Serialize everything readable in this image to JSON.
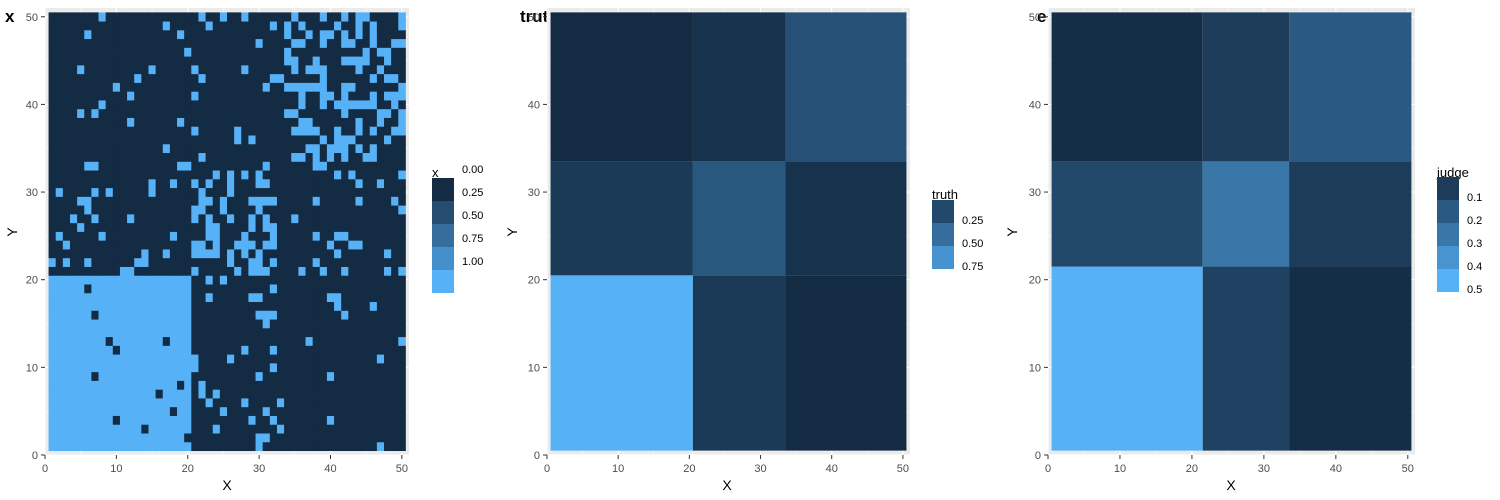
{
  "colors": {
    "panel_background": "#ebebeb",
    "grid_major": "#ffffff",
    "tick_text": "#4d4d4d",
    "scale_low": "#132b43",
    "scale_high": "#56b1f7"
  },
  "chart_data": [
    {
      "type": "heatmap",
      "title": "x",
      "xlabel": "X",
      "ylabel": "Y",
      "xlim": [
        0,
        51
      ],
      "ylim": [
        0,
        51
      ],
      "xticks": [
        "0",
        "10",
        "20",
        "30",
        "40",
        "50"
      ],
      "yticks": [
        "0",
        "10",
        "20",
        "30",
        "40",
        "50"
      ],
      "legend": {
        "title": "x",
        "position": "right",
        "labels": [
          "0.00",
          "0.25",
          "0.50",
          "0.75",
          "1.00"
        ],
        "values": [
          0,
          0.25,
          0.5,
          0.75,
          1
        ]
      },
      "description_of_cells": "50x50 binary matrix (0 = dark, 1 = light); stochastic block model sample with blocks at rows/cols 1-20, 21-33, 34-50",
      "blocks": [
        {
          "x": [
            1,
            20
          ],
          "y": [
            1,
            20
          ],
          "density": 0.98
        },
        {
          "x": [
            21,
            33
          ],
          "y": [
            1,
            20
          ],
          "density": 0.12
        },
        {
          "x": [
            34,
            50
          ],
          "y": [
            1,
            20
          ],
          "density": 0.03
        },
        {
          "x": [
            1,
            20
          ],
          "y": [
            21,
            33
          ],
          "density": 0.12
        },
        {
          "x": [
            21,
            33
          ],
          "y": [
            21,
            33
          ],
          "density": 0.38
        },
        {
          "x": [
            34,
            50
          ],
          "y": [
            21,
            33
          ],
          "density": 0.1
        },
        {
          "x": [
            1,
            20
          ],
          "y": [
            34,
            50
          ],
          "density": 0.03
        },
        {
          "x": [
            21,
            33
          ],
          "y": [
            34,
            50
          ],
          "density": 0.1
        },
        {
          "x": [
            34,
            50
          ],
          "y": [
            34,
            50
          ],
          "density": 0.4
        }
      ]
    },
    {
      "type": "heatmap",
      "title": "truth",
      "xlabel": "X",
      "ylabel": "Y",
      "xlim": [
        0,
        51
      ],
      "ylim": [
        0,
        51
      ],
      "xticks": [
        "0",
        "10",
        "20",
        "30",
        "40",
        "50"
      ],
      "yticks": [
        "0",
        "10",
        "20",
        "30",
        "40",
        "50"
      ],
      "legend": {
        "title": "truth",
        "position": "right",
        "labels": [
          "0.25",
          "0.50",
          "0.75"
        ],
        "values": [
          0.25,
          0.5,
          0.75
        ]
      },
      "scale_range": [
        0.05,
        0.95
      ],
      "blocks": [
        {
          "x": [
            1,
            20
          ],
          "y": [
            1,
            20
          ],
          "value": 0.95
        },
        {
          "x": [
            21,
            33
          ],
          "y": [
            1,
            20
          ],
          "value": 0.15
        },
        {
          "x": [
            34,
            50
          ],
          "y": [
            1,
            20
          ],
          "value": 0.05
        },
        {
          "x": [
            1,
            20
          ],
          "y": [
            21,
            33
          ],
          "value": 0.15
        },
        {
          "x": [
            21,
            33
          ],
          "y": [
            21,
            33
          ],
          "value": 0.35
        },
        {
          "x": [
            34,
            50
          ],
          "y": [
            21,
            33
          ],
          "value": 0.1
        },
        {
          "x": [
            1,
            20
          ],
          "y": [
            34,
            50
          ],
          "value": 0.05
        },
        {
          "x": [
            21,
            33
          ],
          "y": [
            34,
            50
          ],
          "value": 0.1
        },
        {
          "x": [
            34,
            50
          ],
          "y": [
            34,
            50
          ],
          "value": 0.3
        }
      ]
    },
    {
      "type": "heatmap",
      "title": "estimate",
      "xlabel": "X",
      "ylabel": "Y",
      "xlim": [
        0,
        51
      ],
      "ylim": [
        0,
        51
      ],
      "xticks": [
        "0",
        "10",
        "20",
        "30",
        "40",
        "50"
      ],
      "yticks": [
        "0",
        "10",
        "20",
        "30",
        "40",
        "50"
      ],
      "legend": {
        "title": "judge",
        "position": "right",
        "labels": [
          "0.1",
          "0.2",
          "0.3",
          "0.4",
          "0.5"
        ],
        "values": [
          0.1,
          0.2,
          0.3,
          0.4,
          0.5
        ]
      },
      "scale_range": [
        0.04,
        0.5
      ],
      "blocks": [
        {
          "x": [
            1,
            21
          ],
          "y": [
            1,
            21
          ],
          "value": 0.5
        },
        {
          "x": [
            22,
            33
          ],
          "y": [
            1,
            21
          ],
          "value": 0.12
        },
        {
          "x": [
            34,
            50
          ],
          "y": [
            1,
            21
          ],
          "value": 0.05
        },
        {
          "x": [
            1,
            21
          ],
          "y": [
            22,
            33
          ],
          "value": 0.14
        },
        {
          "x": [
            22,
            33
          ],
          "y": [
            22,
            33
          ],
          "value": 0.3
        },
        {
          "x": [
            34,
            50
          ],
          "y": [
            22,
            33
          ],
          "value": 0.1
        },
        {
          "x": [
            1,
            21
          ],
          "y": [
            34,
            50
          ],
          "value": 0.05
        },
        {
          "x": [
            22,
            33
          ],
          "y": [
            34,
            50
          ],
          "value": 0.1
        },
        {
          "x": [
            34,
            50
          ],
          "y": [
            34,
            50
          ],
          "value": 0.2
        }
      ]
    }
  ]
}
